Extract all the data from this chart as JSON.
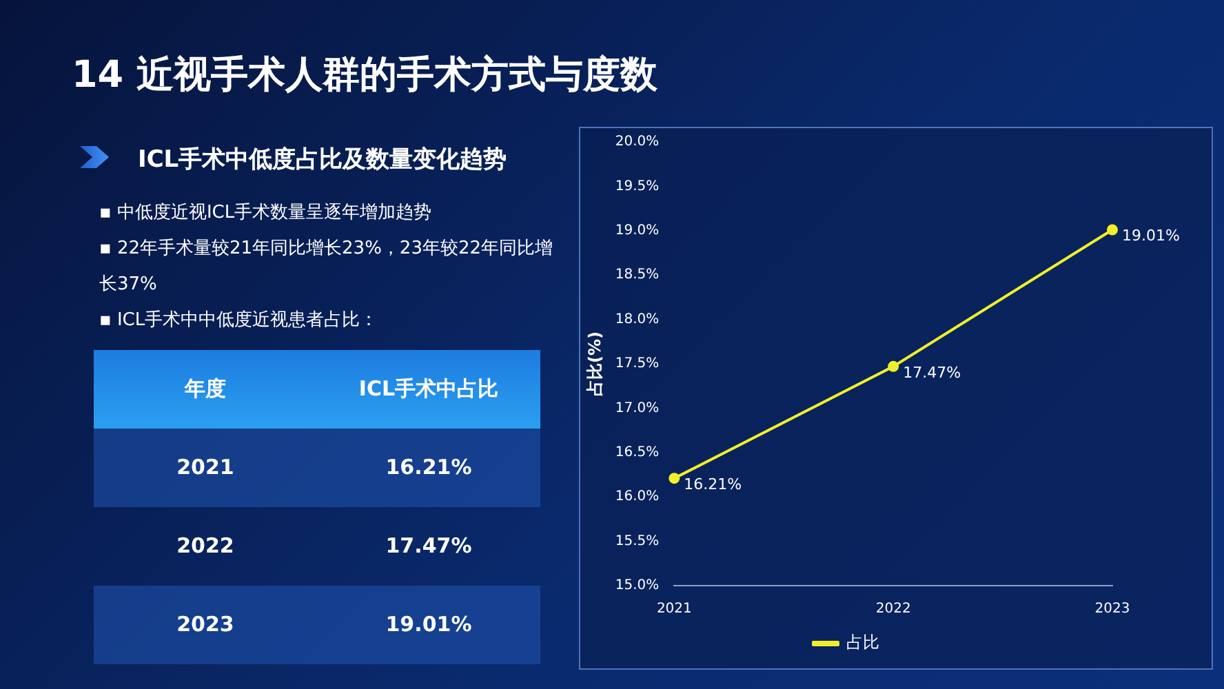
{
  "chart_data": {
    "type": "line",
    "title": "14 近视手术人群的手术方式与度数",
    "subtitle": "ICL手术中低度占比及数量变化趋势",
    "annotations": [
      "▪ 中低度近视ICL手术数量呈逐年增加趋势",
      "▪ 22年手术量较21年同比增长23%，23年较22年同比增长37%",
      "▪ ICL手术中中低度近视患者占比：",
      "年度",
      "ICL手术中占比"
    ],
    "categories": [
      "2021",
      "2022",
      "2023"
    ],
    "series": [
      {
        "name": "占比",
        "color": "#f2ef2a",
        "values": [
          16.21,
          17.47,
          19.01
        ],
        "value_labels": [
          "16.21%",
          "17.47%",
          "19.01%"
        ]
      }
    ],
    "ylabel": "占比(%)",
    "ylim": [
      15,
      20
    ],
    "yticks": [
      {
        "value": 15,
        "label": "15.0%"
      },
      {
        "value": 15.5,
        "label": "15.5%"
      },
      {
        "value": 16,
        "label": "16.0%"
      },
      {
        "value": 16.5,
        "label": "16.5%"
      },
      {
        "value": 17,
        "label": "17.0%"
      },
      {
        "value": 17.5,
        "label": "17.5%"
      },
      {
        "value": 18,
        "label": "18.0%"
      },
      {
        "value": 18.5,
        "label": "18.5%"
      },
      {
        "value": 19,
        "label": "19.0%"
      },
      {
        "value": 19.5,
        "label": "19.5%"
      },
      {
        "value": 20,
        "label": "20.0%"
      }
    ],
    "legend": "bottom",
    "marker": "circle",
    "line_style": "solid"
  }
}
